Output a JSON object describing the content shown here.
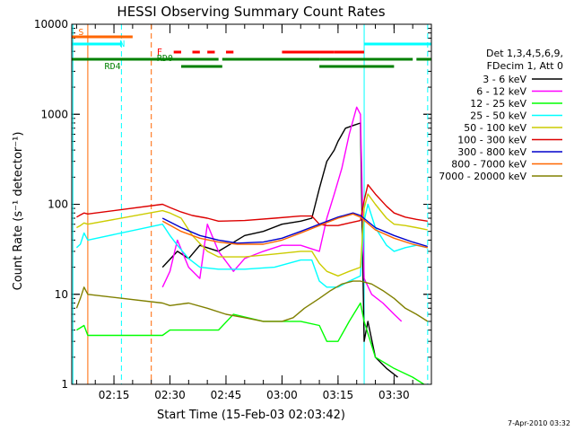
{
  "chart_data": {
    "type": "line",
    "title": "HESSI Observing Summary Count Rates",
    "xlabel": "Start Time (15-Feb-03 02:03:42)",
    "ylabel": "Count Rate (s⁻¹ detector⁻¹)",
    "x_ticks": [
      "02:15",
      "02:30",
      "02:45",
      "03:00",
      "03:15",
      "03:30"
    ],
    "x_range": [
      "02:03:42",
      "03:40:00"
    ],
    "y_scale": "log",
    "ylim": [
      1,
      10000
    ],
    "y_ticks": [
      "1",
      "10",
      "100",
      "1000",
      "10000"
    ],
    "legend_header": [
      "Det 1,3,4,5,6,9,",
      "FDecim 1, Att 0"
    ],
    "legend_position": "right",
    "series": [
      {
        "name": "3 - 6 keV",
        "color": "#000000",
        "t": [
          "02:28",
          "02:32",
          "02:35",
          "02:38",
          "02:43",
          "02:50",
          "02:55",
          "03:00",
          "03:05",
          "03:08",
          "03:10",
          "03:12",
          "03:14",
          "03:15",
          "03:17",
          "03:19",
          "03:21",
          "03:22",
          "03:23",
          "03:25",
          "03:28",
          "03:31"
        ],
        "v": [
          20,
          30,
          25,
          35,
          30,
          45,
          50,
          60,
          65,
          70,
          150,
          300,
          400,
          500,
          700,
          750,
          800,
          3,
          5,
          2,
          1.5,
          1.2
        ]
      },
      {
        "name": "6 - 12 keV",
        "color": "#ff00ff",
        "t": [
          "02:28",
          "02:30",
          "02:32",
          "02:35",
          "02:38",
          "02:40",
          "02:43",
          "02:47",
          "02:50",
          "02:55",
          "03:00",
          "03:05",
          "03:10",
          "03:12",
          "03:14",
          "03:16",
          "03:18",
          "03:20",
          "03:21",
          "03:22",
          "03:24",
          "03:27",
          "03:30",
          "03:32"
        ],
        "v": [
          12,
          18,
          40,
          20,
          15,
          60,
          30,
          18,
          25,
          30,
          35,
          35,
          30,
          70,
          130,
          250,
          600,
          1200,
          1000,
          15,
          10,
          8,
          6,
          5
        ]
      },
      {
        "name": "12 - 25 keV",
        "color": "#00ff00",
        "t": [
          "02:05",
          "02:07",
          "02:08",
          "02:28",
          "02:30",
          "02:35",
          "02:40",
          "02:43",
          "02:47",
          "02:55",
          "03:00",
          "03:05",
          "03:10",
          "03:12",
          "03:15",
          "03:18",
          "03:21",
          "03:22",
          "03:25",
          "03:30",
          "03:35",
          "03:38"
        ],
        "v": [
          4,
          4.5,
          3.5,
          3.5,
          4,
          4,
          4,
          4,
          6,
          5,
          5,
          5,
          4.5,
          3,
          3,
          5,
          8,
          5,
          2,
          1.5,
          1.2,
          1
        ]
      },
      {
        "name": "25 - 50 keV",
        "color": "#00ffff",
        "t": [
          "02:05",
          "02:06",
          "02:07",
          "02:08",
          "02:28",
          "02:30",
          "02:32",
          "02:35",
          "02:38",
          "02:43",
          "02:50",
          "02:58",
          "03:05",
          "03:08",
          "03:10",
          "03:12",
          "03:15",
          "03:18",
          "03:21",
          "03:22",
          "03:23",
          "03:25",
          "03:28",
          "03:30",
          "03:33",
          "03:36",
          "03:39"
        ],
        "v": [
          33,
          36,
          48,
          40,
          60,
          45,
          35,
          25,
          20,
          19,
          19,
          20,
          24,
          24,
          14,
          12,
          12,
          14,
          16,
          65,
          100,
          55,
          35,
          30,
          33,
          35,
          33
        ]
      },
      {
        "name": "50 - 100 keV",
        "color": "#cccc00",
        "t": [
          "02:05",
          "02:06",
          "02:07",
          "02:08",
          "02:28",
          "02:30",
          "02:33",
          "02:36",
          "02:40",
          "02:43",
          "02:50",
          "02:58",
          "03:05",
          "03:08",
          "03:10",
          "03:12",
          "03:15",
          "03:18",
          "03:21",
          "03:22",
          "03:23",
          "03:25",
          "03:28",
          "03:30",
          "03:33",
          "03:36",
          "03:39"
        ],
        "v": [
          55,
          58,
          62,
          60,
          85,
          80,
          70,
          45,
          30,
          26,
          26,
          28,
          30,
          30,
          22,
          18,
          16,
          18,
          20,
          90,
          130,
          100,
          70,
          60,
          58,
          55,
          52
        ]
      },
      {
        "name": "100 - 300 keV",
        "color": "#dd0000",
        "t": [
          "02:05",
          "02:06",
          "02:07",
          "02:08",
          "02:28",
          "02:30",
          "02:33",
          "02:36",
          "02:40",
          "02:43",
          "02:50",
          "02:58",
          "03:05",
          "03:08",
          "03:10",
          "03:12",
          "03:15",
          "03:18",
          "03:21",
          "03:22",
          "03:23",
          "03:25",
          "03:28",
          "03:30",
          "03:33",
          "03:36",
          "03:39"
        ],
        "v": [
          72,
          76,
          80,
          78,
          100,
          92,
          82,
          75,
          70,
          65,
          66,
          70,
          74,
          74,
          60,
          58,
          58,
          62,
          66,
          110,
          165,
          130,
          95,
          80,
          72,
          68,
          65
        ]
      },
      {
        "name": "300 - 800 keV",
        "color": "#0000cc",
        "t": [
          "02:28",
          "02:33",
          "02:38",
          "02:43",
          "02:48",
          "02:55",
          "03:00",
          "03:05",
          "03:10",
          "03:15",
          "03:19",
          "03:21",
          "03:25",
          "03:30",
          "03:35",
          "03:39"
        ],
        "v": [
          70,
          55,
          45,
          40,
          37,
          38,
          42,
          50,
          60,
          72,
          80,
          75,
          55,
          45,
          38,
          34
        ]
      },
      {
        "name": "800 - 7000 keV",
        "color": "#ff6600",
        "t": [
          "02:28",
          "02:33",
          "02:38",
          "02:43",
          "02:48",
          "02:55",
          "03:00",
          "03:05",
          "03:10",
          "03:15",
          "03:19",
          "03:21",
          "03:25",
          "03:30",
          "03:35",
          "03:39"
        ],
        "v": [
          65,
          50,
          42,
          38,
          36,
          36,
          40,
          48,
          58,
          70,
          78,
          72,
          52,
          42,
          36,
          33
        ]
      },
      {
        "name": "7000 - 20000 keV",
        "color": "#808000",
        "t": [
          "02:05",
          "02:06",
          "02:07",
          "02:08",
          "02:28",
          "02:30",
          "02:35",
          "02:40",
          "02:45",
          "02:50",
          "02:55",
          "03:00",
          "03:03",
          "03:06",
          "03:10",
          "03:13",
          "03:16",
          "03:19",
          "03:21",
          "03:24",
          "03:27",
          "03:30",
          "03:33",
          "03:36",
          "03:39"
        ],
        "v": [
          7,
          9,
          12,
          10,
          8,
          7.5,
          8,
          7,
          6,
          5.5,
          5,
          5,
          5.5,
          7,
          9,
          11,
          13,
          14,
          14,
          13,
          11,
          9,
          7,
          6,
          5
        ]
      }
    ],
    "status_bars": [
      {
        "label": "S",
        "color": "#ff6600",
        "segments": [
          [
            "02:03:42",
            "02:20"
          ]
        ]
      },
      {
        "label": "N",
        "color": "#00ffff",
        "segments": [
          [
            "02:03:42",
            "02:17"
          ],
          [
            "03:22",
            "03:40"
          ]
        ]
      },
      {
        "label": "F",
        "color": "#ff0000",
        "segments": [
          [
            "02:31",
            "02:33"
          ],
          [
            "02:36",
            "02:38"
          ],
          [
            "02:40",
            "02:42"
          ],
          [
            "02:45",
            "02:47"
          ],
          [
            "03:00",
            "03:14"
          ],
          [
            "03:14",
            "03:22"
          ]
        ]
      },
      {
        "label": "RD0",
        "color": "#008000",
        "segments": [
          [
            "02:03:42",
            "02:43"
          ],
          [
            "02:44",
            "03:10"
          ],
          [
            "03:10",
            "03:35"
          ],
          [
            "03:36",
            "03:40"
          ]
        ]
      },
      {
        "label": "RD4",
        "color": "#008000",
        "segments": [
          [
            "02:33",
            "02:44"
          ],
          [
            "03:10",
            "03:30"
          ]
        ]
      }
    ],
    "vertical_markers": [
      {
        "time": "02:04",
        "color": "#00ffff",
        "style": "solid"
      },
      {
        "time": "02:08",
        "color": "#ff6600",
        "style": "solid"
      },
      {
        "time": "02:17",
        "color": "#00ffff",
        "style": "dashed"
      },
      {
        "time": "02:25",
        "color": "#ff6600",
        "style": "dashed"
      },
      {
        "time": "03:22",
        "color": "#00ffff",
        "style": "solid"
      },
      {
        "time": "03:39",
        "color": "#00ffff",
        "style": "dashed"
      }
    ],
    "footer_date": "7-Apr-2010 03:32"
  }
}
